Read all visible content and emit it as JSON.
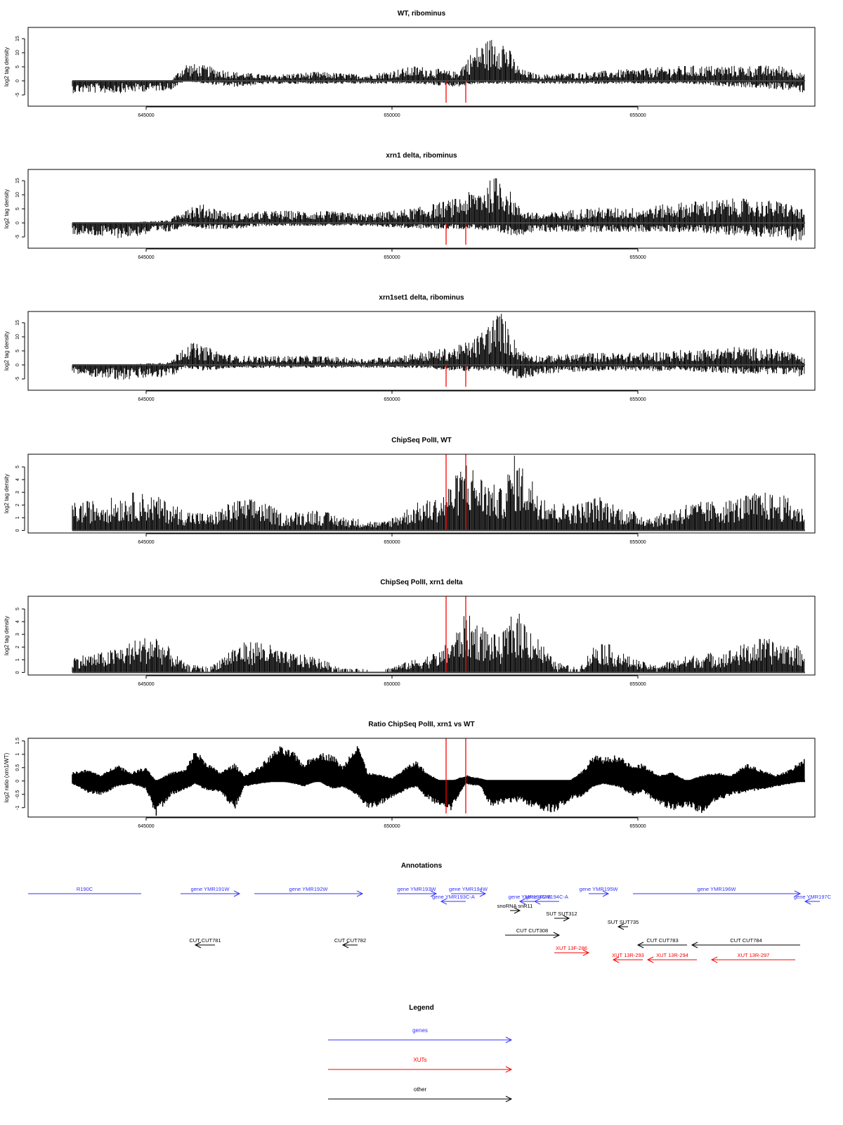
{
  "chart_data": [
    {
      "type": "area",
      "title": "WT, ribominus",
      "ylabel": "log2 tag density",
      "xlim": [
        642600,
        658600
      ],
      "ylim": [
        -9,
        19
      ],
      "yticks": [
        -5,
        0,
        5,
        10,
        15
      ],
      "xticks": [
        645000,
        650000,
        655000
      ],
      "grid": false,
      "x": [
        643500,
        644500,
        645500,
        645800,
        646200,
        646800,
        647500,
        648500,
        649500,
        650500,
        651300,
        651700,
        652200,
        652600,
        653000,
        654000,
        655000,
        656000,
        657000,
        658000,
        658400
      ],
      "y_top": [
        0,
        0,
        0,
        6,
        5,
        3,
        2,
        3,
        2,
        5,
        3,
        11,
        16,
        4,
        2,
        3,
        4,
        5,
        5,
        5,
        2
      ],
      "y_bottom": [
        -4,
        -4,
        -3,
        0,
        -1,
        -2,
        -1,
        -1,
        -1,
        -1,
        -2,
        -1,
        -1,
        -1,
        -1,
        -1,
        -1,
        -1,
        -2,
        -3,
        -4
      ],
      "red_markers": [
        651100,
        651500
      ]
    },
    {
      "type": "area",
      "title": "xrn1 delta, ribominus",
      "ylabel": "log2 tag density",
      "xlim": [
        642600,
        658600
      ],
      "ylim": [
        -9,
        19
      ],
      "yticks": [
        -5,
        0,
        5,
        10,
        15
      ],
      "xticks": [
        645000,
        650000,
        655000
      ],
      "grid": false,
      "x": [
        643500,
        644500,
        645500,
        645800,
        646200,
        646800,
        647500,
        648500,
        649500,
        650500,
        651300,
        651700,
        652200,
        652600,
        653000,
        654000,
        655000,
        656000,
        657000,
        658000,
        658400
      ],
      "y_top": [
        0,
        0,
        1,
        6,
        6,
        3,
        4,
        4,
        3,
        5,
        8,
        11,
        16,
        5,
        3,
        5,
        5,
        7,
        8,
        7,
        4
      ],
      "y_bottom": [
        -4,
        -5,
        -3,
        -1,
        -2,
        -2,
        -1,
        -1,
        -1,
        -2,
        -2,
        -2,
        -4,
        -4,
        -3,
        -3,
        -3,
        -3,
        -4,
        -5,
        -7
      ],
      "red_markers": [
        651100,
        651500
      ]
    },
    {
      "type": "area",
      "title": "xrn1set1 delta, ribominus",
      "ylabel": "log2 tag density",
      "xlim": [
        642600,
        658600
      ],
      "ylim": [
        -9,
        19
      ],
      "yticks": [
        -5,
        0,
        5,
        10,
        15
      ],
      "xticks": [
        645000,
        650000,
        655000
      ],
      "grid": false,
      "x": [
        643500,
        644500,
        645500,
        645800,
        646200,
        646800,
        647500,
        648500,
        649500,
        650500,
        651300,
        651700,
        652200,
        652600,
        653000,
        654000,
        655000,
        656000,
        657000,
        658000,
        658400
      ],
      "y_top": [
        0,
        0,
        1,
        8,
        6,
        3,
        3,
        3,
        2,
        4,
        6,
        9,
        18,
        5,
        3,
        4,
        4,
        5,
        6,
        5,
        2
      ],
      "y_bottom": [
        -3,
        -5,
        -4,
        -1,
        -2,
        -1,
        -1,
        -1,
        -1,
        -1,
        -2,
        -2,
        -2,
        -5,
        -3,
        -2,
        -2,
        -2,
        -3,
        -3,
        -4
      ],
      "red_markers": [
        651100,
        651500
      ]
    },
    {
      "type": "area",
      "title": "ChipSeq PolII, WT",
      "ylabel": "log2 tag density",
      "xlim": [
        642600,
        658600
      ],
      "ylim": [
        -0.2,
        6
      ],
      "yticks": [
        0,
        1,
        2,
        3,
        4,
        5
      ],
      "xticks": [
        645000,
        650000,
        655000
      ],
      "grid": false,
      "x": [
        643500,
        644200,
        644800,
        645200,
        645800,
        646300,
        646800,
        647300,
        647800,
        648400,
        649000,
        649800,
        650500,
        651000,
        651300,
        651500,
        651800,
        652200,
        652500,
        652800,
        653300,
        653800,
        654200,
        654800,
        655300,
        656000,
        656800,
        657500,
        658000,
        658400
      ],
      "y_top": [
        2,
        2.3,
        2.8,
        2.5,
        1.5,
        1.2,
        2.2,
        2.3,
        1.2,
        1.6,
        1,
        0.6,
        2,
        2.5,
        4,
        5.2,
        4,
        3,
        5.5,
        4,
        2,
        2,
        2.5,
        1.5,
        1,
        2,
        2.2,
        2.8,
        2.5,
        1.5
      ],
      "y_bottom": [
        0,
        0,
        0,
        0,
        0,
        0,
        0,
        0,
        0,
        0,
        0,
        0,
        0,
        0,
        0,
        0,
        0,
        0,
        0,
        0,
        0,
        0,
        0,
        0,
        0,
        0,
        0,
        0,
        0,
        0
      ],
      "red_markers": [
        651100,
        651500
      ]
    },
    {
      "type": "area",
      "title": "ChipSeq PolII, xrn1 delta",
      "ylabel": "log2 tag density",
      "xlim": [
        642600,
        658600
      ],
      "ylim": [
        -0.2,
        6
      ],
      "yticks": [
        0,
        1,
        2,
        3,
        4,
        5
      ],
      "xticks": [
        645000,
        650000,
        655000
      ],
      "grid": false,
      "x": [
        643500,
        644200,
        644800,
        645200,
        645800,
        646300,
        646800,
        647300,
        647800,
        648400,
        649000,
        649800,
        650500,
        651000,
        651300,
        651500,
        651800,
        652200,
        652500,
        652800,
        653300,
        653800,
        654200,
        654800,
        655300,
        656000,
        656800,
        657500,
        658000,
        658400
      ],
      "y_top": [
        1.2,
        1.5,
        2.4,
        2.8,
        0.6,
        0.4,
        2,
        2.4,
        1.5,
        1.2,
        0.3,
        0.2,
        1,
        1.6,
        3,
        4.3,
        3.5,
        2.5,
        4.6,
        3.5,
        0.8,
        0.3,
        2.5,
        1.2,
        0.5,
        1.2,
        1.6,
        2.5,
        2.2,
        1.8
      ],
      "y_bottom": [
        0,
        0,
        0,
        0,
        0,
        0,
        0,
        0,
        0,
        0,
        0,
        0,
        0,
        0,
        0,
        0,
        0,
        0,
        0,
        0,
        0,
        0,
        0,
        0,
        0,
        0,
        0,
        0,
        0,
        0
      ],
      "red_markers": [
        651100,
        651500
      ]
    },
    {
      "type": "area",
      "title": "Ratio ChipSeq PolII, xrn1 vs WT",
      "ylabel": "log2 ratio (xrn1/WT)",
      "xlim": [
        642600,
        658600
      ],
      "ylim": [
        -1.35,
        1.6
      ],
      "yticks": [
        -1.0,
        -0.5,
        0.0,
        0.5,
        1.0,
        1.5
      ],
      "xticks": [
        645000,
        650000,
        655000
      ],
      "grid": false,
      "x": [
        643500,
        643800,
        644100,
        644400,
        644700,
        645000,
        645200,
        645500,
        645800,
        646000,
        646200,
        646500,
        646800,
        647000,
        647300,
        647700,
        648000,
        648200,
        648500,
        648800,
        649000,
        649300,
        649500,
        649800,
        650000,
        650300,
        650500,
        650700,
        651000,
        651200,
        651500,
        651800,
        652000,
        652300,
        652600,
        653000,
        653300,
        653600,
        653900,
        654100,
        654300,
        654600,
        654900,
        655100,
        655400,
        655700,
        656000,
        656300,
        656600,
        656900,
        657200,
        657500,
        657800,
        658100,
        658400
      ],
      "y_pos": [
        0.3,
        0.4,
        0.2,
        0.6,
        0.3,
        0.5,
        0.0,
        0.3,
        0.4,
        1.1,
        0.7,
        0.3,
        0.6,
        0.2,
        0.5,
        1.2,
        1.0,
        0.6,
        1.0,
        0.9,
        0.5,
        1.4,
        0.3,
        0.2,
        0.1,
        0.5,
        0.7,
        0.3,
        0.0,
        0.0,
        0.2,
        0.1,
        0.0,
        0.0,
        0.0,
        0.0,
        0.0,
        0.0,
        0.4,
        0.9,
        0.8,
        0.9,
        0.5,
        0.6,
        0.2,
        0.3,
        0.0,
        0.2,
        0.3,
        0.2,
        0.6,
        0.4,
        0.2,
        0.4,
        0.8
      ],
      "y_neg": [
        -0.1,
        -0.4,
        -0.5,
        -0.2,
        -0.1,
        -0.3,
        -1.2,
        -0.5,
        -0.3,
        -0.1,
        -0.3,
        -0.4,
        -1.0,
        -0.2,
        -0.1,
        0.0,
        -0.1,
        -0.2,
        0.0,
        -0.3,
        -0.2,
        -0.5,
        -1.0,
        -0.8,
        -0.6,
        -0.3,
        -0.2,
        -0.6,
        -0.9,
        -1.0,
        -0.1,
        -0.2,
        -0.9,
        -0.8,
        -0.7,
        -1.0,
        -1.1,
        -0.7,
        -0.5,
        -0.2,
        -0.1,
        -0.2,
        -0.5,
        -0.4,
        -0.8,
        -1.0,
        -0.9,
        -1.1,
        -0.7,
        -0.5,
        -0.4,
        -0.3,
        -0.2,
        -0.1,
        0.0
      ],
      "red_markers": [
        651100,
        651500
      ]
    }
  ],
  "annotations": {
    "title": "Annotations",
    "xlim": [
      642600,
      658600
    ],
    "features": [
      {
        "label": "R190C",
        "start": 642600,
        "end": 644900,
        "strand": "-",
        "color": "#3333ff",
        "row": 0,
        "head": false
      },
      {
        "label": "gene YMR191W",
        "start": 645700,
        "end": 646900,
        "strand": "+",
        "color": "#3333ff",
        "row": 0,
        "head": true
      },
      {
        "label": "gene YMR192W",
        "start": 647200,
        "end": 649400,
        "strand": "+",
        "color": "#3333ff",
        "row": 0,
        "head": true
      },
      {
        "label": "gene YMR193W",
        "start": 650100,
        "end": 650900,
        "strand": "+",
        "color": "#3333ff",
        "row": 0,
        "head": true
      },
      {
        "label": "gene YMR194W",
        "start": 651200,
        "end": 651900,
        "strand": "+",
        "color": "#3333ff",
        "row": 0,
        "head": true
      },
      {
        "label": "gene YMR193C-A",
        "start": 651000,
        "end": 651500,
        "strand": "-",
        "color": "#3333ff",
        "row": 1,
        "head": true
      },
      {
        "label": "gene YMR194C-B",
        "start": 652600,
        "end": 653000,
        "strand": "-",
        "color": "#3333ff",
        "row": 1,
        "head": true
      },
      {
        "label": "gene YMR194C-A",
        "start": 652900,
        "end": 653400,
        "strand": "-",
        "color": "#3333ff",
        "row": 1,
        "head": true
      },
      {
        "label": "gene YMR195W",
        "start": 654000,
        "end": 654400,
        "strand": "+",
        "color": "#3333ff",
        "row": 0,
        "head": true
      },
      {
        "label": "gene YMR196W",
        "start": 654900,
        "end": 658300,
        "strand": "+",
        "color": "#3333ff",
        "row": 0,
        "head": true
      },
      {
        "label": "gene YMR197C",
        "start": 658400,
        "end": 658700,
        "strand": "-",
        "color": "#3333ff",
        "row": 1,
        "head": true
      },
      {
        "label": "snoRNA snR11",
        "start": 652400,
        "end": 652600,
        "strand": "+",
        "color": "#000000",
        "row": 2,
        "head": true
      },
      {
        "label": "SUT SUT312",
        "start": 653300,
        "end": 653600,
        "strand": "+",
        "color": "#000000",
        "row": 3,
        "head": true
      },
      {
        "label": "SUT SUT735",
        "start": 654600,
        "end": 654800,
        "strand": "-",
        "color": "#000000",
        "row": 4,
        "head": true
      },
      {
        "label": "CUT CUT308",
        "start": 652300,
        "end": 653400,
        "strand": "+",
        "color": "#000000",
        "row": 5,
        "head": true
      },
      {
        "label": "CUT CUT781",
        "start": 646000,
        "end": 646400,
        "strand": "-",
        "color": "#000000",
        "row": 6,
        "head": true
      },
      {
        "label": "CUT CUT782",
        "start": 649000,
        "end": 649300,
        "strand": "-",
        "color": "#000000",
        "row": 6,
        "head": true
      },
      {
        "label": "CUT CUT783",
        "start": 655000,
        "end": 656000,
        "strand": "-",
        "color": "#000000",
        "row": 6,
        "head": true
      },
      {
        "label": "CUT CUT784",
        "start": 656100,
        "end": 658300,
        "strand": "-",
        "color": "#000000",
        "row": 6,
        "head": true
      },
      {
        "label": "XUT 13F-286",
        "start": 653300,
        "end": 654000,
        "strand": "+",
        "color": "#ff0000",
        "row": 7,
        "head": true
      },
      {
        "label": "XUT 13R-293",
        "start": 654500,
        "end": 655100,
        "strand": "-",
        "color": "#ff0000",
        "row": 8,
        "head": true
      },
      {
        "label": "XUT 13R-294",
        "start": 655200,
        "end": 656200,
        "strand": "-",
        "color": "#ff0000",
        "row": 8,
        "head": true
      },
      {
        "label": "XUT 13R-297",
        "start": 656500,
        "end": 658200,
        "strand": "-",
        "color": "#ff0000",
        "row": 8,
        "head": true
      }
    ]
  },
  "legend": {
    "title": "Legend",
    "items": [
      {
        "label": "genes",
        "color": "#3333ff"
      },
      {
        "label": "XUTs",
        "color": "#ff0000"
      },
      {
        "label": "other",
        "color": "#000000"
      }
    ]
  }
}
